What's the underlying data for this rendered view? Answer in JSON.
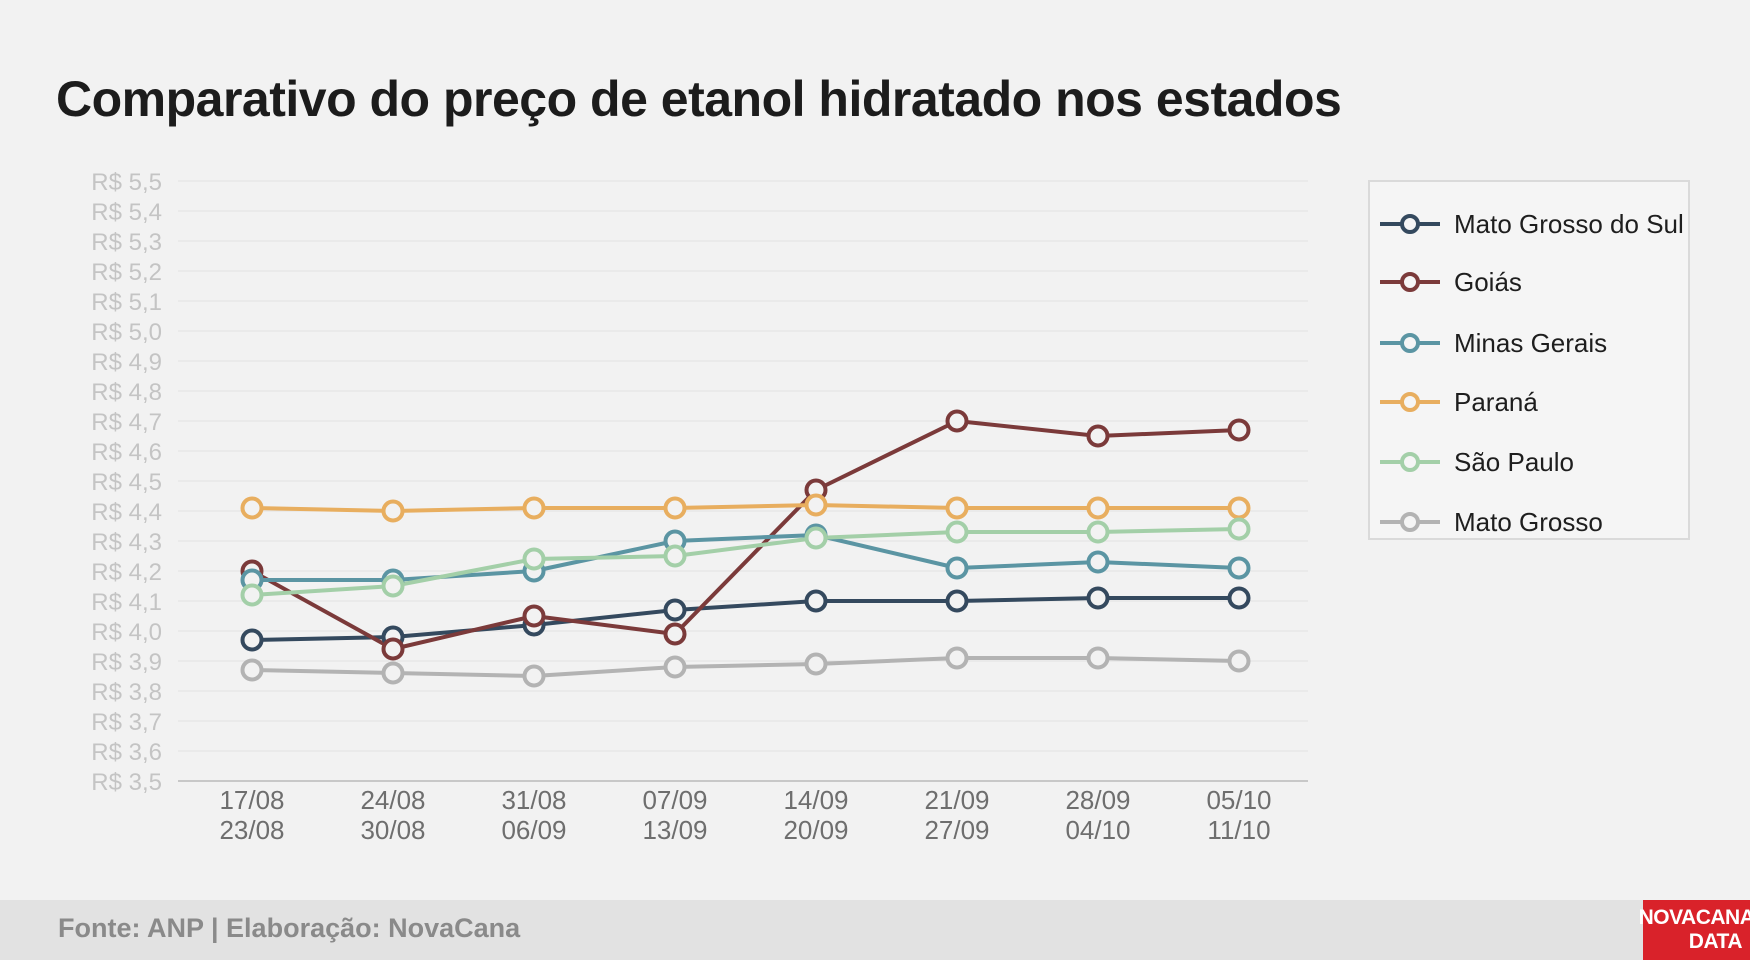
{
  "title": "Comparativo do preço de etanol hidratado nos estados",
  "footer": {
    "source": "Fonte: ANP | Elaboração: NovaCana",
    "logo_line1": "NOVACANA",
    "logo_line2": "DATA"
  },
  "colors": {
    "background": "#f2f2f2",
    "grid": "#e2e2e2",
    "tick_y": "#c4c4c4",
    "tick_x": "#6e6e6e"
  },
  "chart_data": {
    "type": "line",
    "title": "Comparativo do preço de etanol hidratado nos estados",
    "xlabel": "",
    "ylabel": "",
    "x": [
      "17/08\n23/08",
      "24/08\n30/08",
      "31/08\n06/09",
      "07/09\n13/09",
      "14/09\n20/09",
      "21/09\n27/09",
      "28/09\n04/10",
      "05/10\n11/10"
    ],
    "ylim": [
      3.5,
      5.5
    ],
    "y_ticks": [
      "R$ 3,5",
      "R$ 3,6",
      "R$ 3,7",
      "R$ 3,8",
      "R$ 3,9",
      "R$ 4,0",
      "R$ 4,1",
      "R$ 4,2",
      "R$ 4,3",
      "R$ 4,4",
      "R$ 4,5",
      "R$ 4,6",
      "R$ 4,7",
      "R$ 4,8",
      "R$ 4,9",
      "R$ 5,0",
      "R$ 5,1",
      "R$ 5,2",
      "R$ 5,3",
      "R$ 5,4",
      "R$ 5,5"
    ],
    "grid": true,
    "legend_position": "right",
    "series": [
      {
        "name": "Mato Grosso do Sul",
        "color": "#34495e",
        "values": [
          3.97,
          3.98,
          4.02,
          4.07,
          4.1,
          4.1,
          4.11,
          4.11
        ]
      },
      {
        "name": "Goiás",
        "color": "#7b3a3a",
        "values": [
          4.2,
          3.94,
          4.05,
          3.99,
          4.47,
          4.7,
          4.65,
          4.67
        ]
      },
      {
        "name": "Minas Gerais",
        "color": "#5b95a3",
        "values": [
          4.17,
          4.17,
          4.2,
          4.3,
          4.32,
          4.21,
          4.23,
          4.21
        ]
      },
      {
        "name": "Paraná",
        "color": "#e8ae5f",
        "values": [
          4.41,
          4.4,
          4.41,
          4.41,
          4.42,
          4.41,
          4.41,
          4.41
        ]
      },
      {
        "name": "São Paulo",
        "color": "#a3cfa8",
        "values": [
          4.12,
          4.15,
          4.24,
          4.25,
          4.31,
          4.33,
          4.33,
          4.34
        ]
      },
      {
        "name": "Mato Grosso",
        "color": "#b3b3b3",
        "values": [
          3.87,
          3.86,
          3.85,
          3.88,
          3.89,
          3.91,
          3.91,
          3.9
        ]
      }
    ]
  }
}
